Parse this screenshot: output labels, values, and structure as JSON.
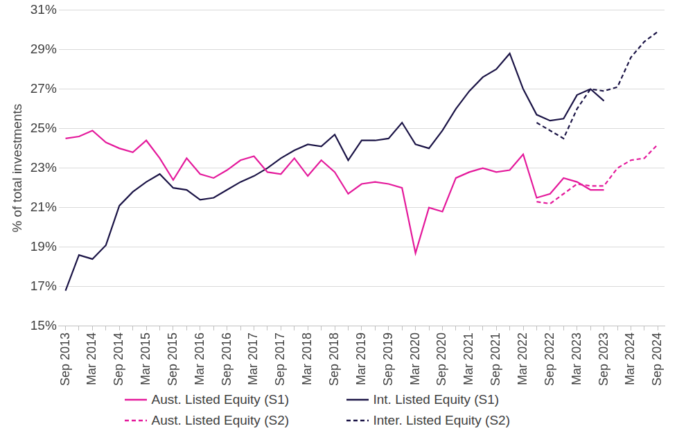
{
  "chart_data": {
    "type": "line",
    "y_label": "% of total investments",
    "categories": [
      "Sep 2013",
      null,
      "Mar 2014",
      null,
      "Sep 2014",
      null,
      "Mar 2015",
      null,
      "Sep 2015",
      null,
      "Mar 2016",
      null,
      "Sep 2016",
      null,
      "Mar 2017",
      null,
      "Sep 2017",
      null,
      "Mar 2018",
      null,
      "Sep 2018",
      null,
      "Mar 2019",
      null,
      "Sep 2019",
      null,
      "Mar 2020",
      null,
      "Sep 2020",
      null,
      "Mar 2021",
      null,
      "Sep 2021",
      null,
      "Mar 2022",
      null,
      "Sep 2022",
      null,
      "Mar 2023",
      null,
      "Sep 2023",
      null,
      "Mar 2024",
      null,
      "Sep 2024"
    ],
    "series": [
      {
        "name": "Aust. Listed Equity (S1)",
        "color": "#e4199b",
        "line_style": "solid",
        "values": [
          24.5,
          24.6,
          24.9,
          24.3,
          24.0,
          23.8,
          24.4,
          23.5,
          22.4,
          23.5,
          22.7,
          22.5,
          22.9,
          23.4,
          23.6,
          22.8,
          22.7,
          23.5,
          22.6,
          23.4,
          22.8,
          21.7,
          22.2,
          22.3,
          22.2,
          22.0,
          18.7,
          21.0,
          20.8,
          22.5,
          22.8,
          23.0,
          22.8,
          22.9,
          23.7,
          21.5,
          21.7,
          22.5,
          22.3,
          21.9,
          21.9,
          null,
          null,
          null,
          null
        ]
      },
      {
        "name": "Int. Listed Equity (S1)",
        "color": "#1b1446",
        "line_style": "solid",
        "values": [
          16.8,
          18.6,
          18.4,
          19.1,
          21.1,
          21.8,
          22.3,
          22.7,
          22.0,
          21.9,
          21.4,
          21.5,
          21.9,
          22.3,
          22.6,
          23.0,
          23.5,
          23.9,
          24.2,
          24.1,
          24.7,
          23.4,
          24.4,
          24.4,
          24.5,
          25.3,
          24.2,
          24.0,
          24.9,
          26.0,
          26.9,
          27.6,
          28.0,
          28.8,
          27.0,
          25.7,
          25.4,
          25.5,
          26.7,
          27.0,
          26.4,
          null,
          null,
          null,
          null
        ]
      },
      {
        "name": "Aust. Listed Equity (S2)",
        "color": "#e4199b",
        "line_style": "dashed",
        "values": [
          null,
          null,
          null,
          null,
          null,
          null,
          null,
          null,
          null,
          null,
          null,
          null,
          null,
          null,
          null,
          null,
          null,
          null,
          null,
          null,
          null,
          null,
          null,
          null,
          null,
          null,
          null,
          null,
          null,
          null,
          null,
          null,
          null,
          null,
          null,
          21.3,
          21.2,
          21.7,
          22.2,
          22.1,
          22.1,
          23.0,
          23.4,
          23.5,
          24.2
        ]
      },
      {
        "name": "Inter. Listed Equity (S2)",
        "color": "#1b1446",
        "line_style": "dashed",
        "values": [
          null,
          null,
          null,
          null,
          null,
          null,
          null,
          null,
          null,
          null,
          null,
          null,
          null,
          null,
          null,
          null,
          null,
          null,
          null,
          null,
          null,
          null,
          null,
          null,
          null,
          null,
          null,
          null,
          null,
          null,
          null,
          null,
          null,
          null,
          null,
          25.3,
          24.9,
          24.5,
          26.0,
          27.0,
          26.9,
          27.1,
          28.6,
          29.4,
          29.9
        ]
      }
    ],
    "ylim": [
      15,
      31
    ],
    "yticks": [
      {
        "value": 15,
        "label": "15%"
      },
      {
        "value": 17,
        "label": "17%"
      },
      {
        "value": 19,
        "label": "19%"
      },
      {
        "value": 21,
        "label": "21%"
      },
      {
        "value": 23,
        "label": "23%"
      },
      {
        "value": 25,
        "label": "25%"
      },
      {
        "value": 27,
        "label": "27%"
      },
      {
        "value": 29,
        "label": "29%"
      },
      {
        "value": 31,
        "label": "31%"
      }
    ],
    "grid": true,
    "legend": "bottom"
  }
}
